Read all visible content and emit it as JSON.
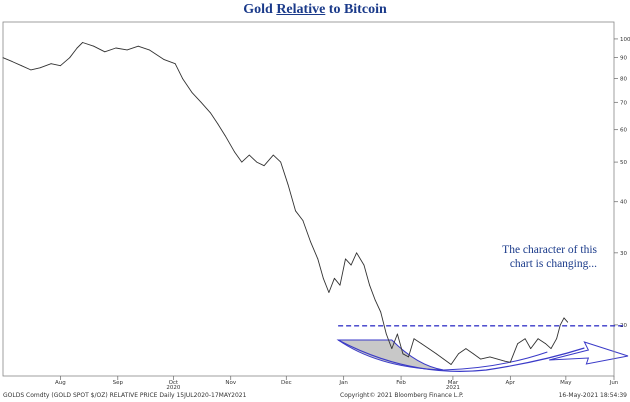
{
  "title": {
    "pre": "Gold ",
    "under": "Relative",
    "post": " to Bitcoin"
  },
  "annotation": {
    "line1": "The character of this",
    "line2": "chart is changing..."
  },
  "footer": {
    "left": "GOLDS Comdty (GOLD SPOT $/OZ) RELATIVE PRICE  Daily 15JUL2020-17MAY2021",
    "center": "Copyright© 2021 Bloomberg Finance L.P.",
    "right": "16-May-2021 18:54:39"
  },
  "colors": {
    "line": "#333333",
    "accent": "#3a3ac8",
    "fill": "#c8c8c8",
    "title": "#1a3a8a"
  },
  "chart_data": {
    "type": "line",
    "title": "Gold Relative to Bitcoin",
    "y_scale": "log",
    "ylim": [
      15,
      110
    ],
    "x_range": [
      "2020-07-15",
      "2021-06-10"
    ],
    "month_ticks": [
      {
        "label": "Aug",
        "date": "2020-08-15"
      },
      {
        "label": "Sep",
        "date": "2020-09-15"
      },
      {
        "label": "Oct",
        "date": "2020-10-15"
      },
      {
        "label": "Nov",
        "date": "2020-11-15"
      },
      {
        "label": "Dec",
        "date": "2020-12-15"
      },
      {
        "label": "Jan",
        "date": "2021-01-15"
      },
      {
        "label": "Feb",
        "date": "2021-02-15"
      },
      {
        "label": "Mar",
        "date": "2021-03-15"
      },
      {
        "label": "Apr",
        "date": "2021-04-15"
      },
      {
        "label": "May",
        "date": "2021-05-15"
      },
      {
        "label": "Jun",
        "date": "2021-06-10"
      }
    ],
    "year_labels": [
      {
        "label": "2020",
        "date": "2020-10-15"
      },
      {
        "label": "2021",
        "date": "2021-03-15"
      }
    ],
    "y_ticks": [
      100,
      90,
      80,
      70,
      60,
      50,
      40,
      30,
      20
    ],
    "series": [
      {
        "points": [
          [
            "2020-07-15",
            90
          ],
          [
            "2020-07-20",
            88
          ],
          [
            "2020-07-25",
            86
          ],
          [
            "2020-07-30",
            84
          ],
          [
            "2020-08-04",
            85
          ],
          [
            "2020-08-10",
            87
          ],
          [
            "2020-08-15",
            86
          ],
          [
            "2020-08-20",
            90
          ],
          [
            "2020-08-24",
            95
          ],
          [
            "2020-08-27",
            98
          ],
          [
            "2020-09-02",
            96
          ],
          [
            "2020-09-08",
            93
          ],
          [
            "2020-09-14",
            95
          ],
          [
            "2020-09-20",
            94
          ],
          [
            "2020-09-26",
            96
          ],
          [
            "2020-10-02",
            94
          ],
          [
            "2020-10-10",
            89
          ],
          [
            "2020-10-16",
            87
          ],
          [
            "2020-10-20",
            80
          ],
          [
            "2020-10-25",
            74
          ],
          [
            "2020-10-30",
            70
          ],
          [
            "2020-11-04",
            66
          ],
          [
            "2020-11-08",
            62
          ],
          [
            "2020-11-12",
            58
          ],
          [
            "2020-11-17",
            53
          ],
          [
            "2020-11-21",
            50
          ],
          [
            "2020-11-25",
            52
          ],
          [
            "2020-11-29",
            50
          ],
          [
            "2020-12-03",
            49
          ],
          [
            "2020-12-08",
            52
          ],
          [
            "2020-12-12",
            50
          ],
          [
            "2020-12-16",
            44
          ],
          [
            "2020-12-20",
            38
          ],
          [
            "2020-12-24",
            36
          ],
          [
            "2020-12-28",
            32
          ],
          [
            "2021-01-01",
            29
          ],
          [
            "2021-01-04",
            26
          ],
          [
            "2021-01-07",
            24
          ],
          [
            "2021-01-10",
            26
          ],
          [
            "2021-01-13",
            25
          ],
          [
            "2021-01-16",
            29
          ],
          [
            "2021-01-19",
            28
          ],
          [
            "2021-01-22",
            30
          ],
          [
            "2021-01-26",
            28
          ],
          [
            "2021-01-29",
            25
          ],
          [
            "2021-02-01",
            23
          ],
          [
            "2021-02-04",
            21.5
          ],
          [
            "2021-02-07",
            19
          ],
          [
            "2021-02-10",
            17.5
          ],
          [
            "2021-02-13",
            19
          ],
          [
            "2021-02-16",
            17
          ],
          [
            "2021-02-19",
            16.7
          ],
          [
            "2021-02-22",
            18.5
          ],
          [
            "2021-02-26",
            18
          ],
          [
            "2021-03-02",
            17.5
          ],
          [
            "2021-03-06",
            17
          ],
          [
            "2021-03-10",
            16.5
          ],
          [
            "2021-03-14",
            16
          ],
          [
            "2021-03-18",
            17
          ],
          [
            "2021-03-22",
            17.5
          ],
          [
            "2021-03-26",
            17
          ],
          [
            "2021-03-30",
            16.5
          ],
          [
            "2021-04-04",
            16.7
          ],
          [
            "2021-04-08",
            16.5
          ],
          [
            "2021-04-12",
            16.3
          ],
          [
            "2021-04-15",
            16.2
          ],
          [
            "2021-04-19",
            18
          ],
          [
            "2021-04-23",
            18.5
          ],
          [
            "2021-04-26",
            17.5
          ],
          [
            "2021-04-30",
            18.5
          ],
          [
            "2021-05-04",
            18
          ],
          [
            "2021-05-07",
            17.5
          ],
          [
            "2021-05-10",
            18.5
          ],
          [
            "2021-05-12",
            20
          ],
          [
            "2021-05-14",
            20.8
          ],
          [
            "2021-05-16",
            20.3
          ]
        ]
      }
    ],
    "resistance_level": 19.9
  }
}
